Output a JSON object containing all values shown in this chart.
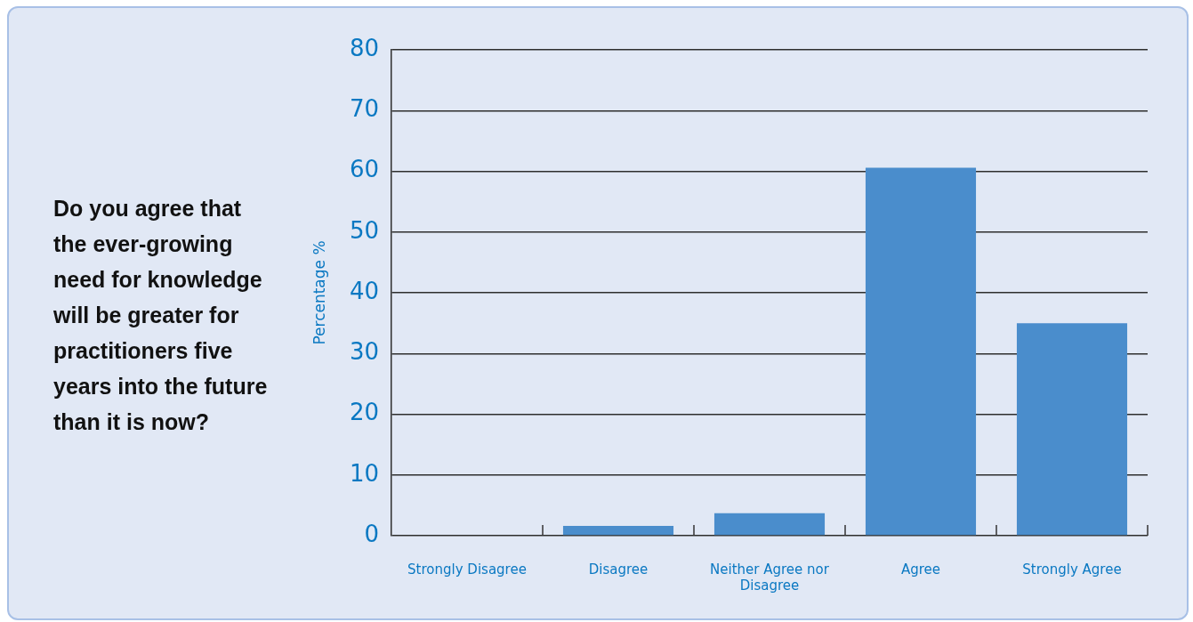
{
  "chart_data": {
    "type": "bar",
    "title": "Do you agree that the ever-growing need for knowledge will be greater for practitioners five years into the future than it is now?",
    "ylabel": "Percentage %",
    "categories": [
      "Strongly Disagree",
      "Disagree",
      "Neither Agree nor Disagree",
      "Agree",
      "Strongly Agree"
    ],
    "values": [
      0,
      1.6,
      3.7,
      60.6,
      35.0
    ],
    "color": "#4a8dcc",
    "ylim": [
      0,
      80
    ],
    "yticks": [
      0,
      10,
      20,
      30,
      40,
      50,
      60,
      70,
      80
    ],
    "grid": "y"
  }
}
